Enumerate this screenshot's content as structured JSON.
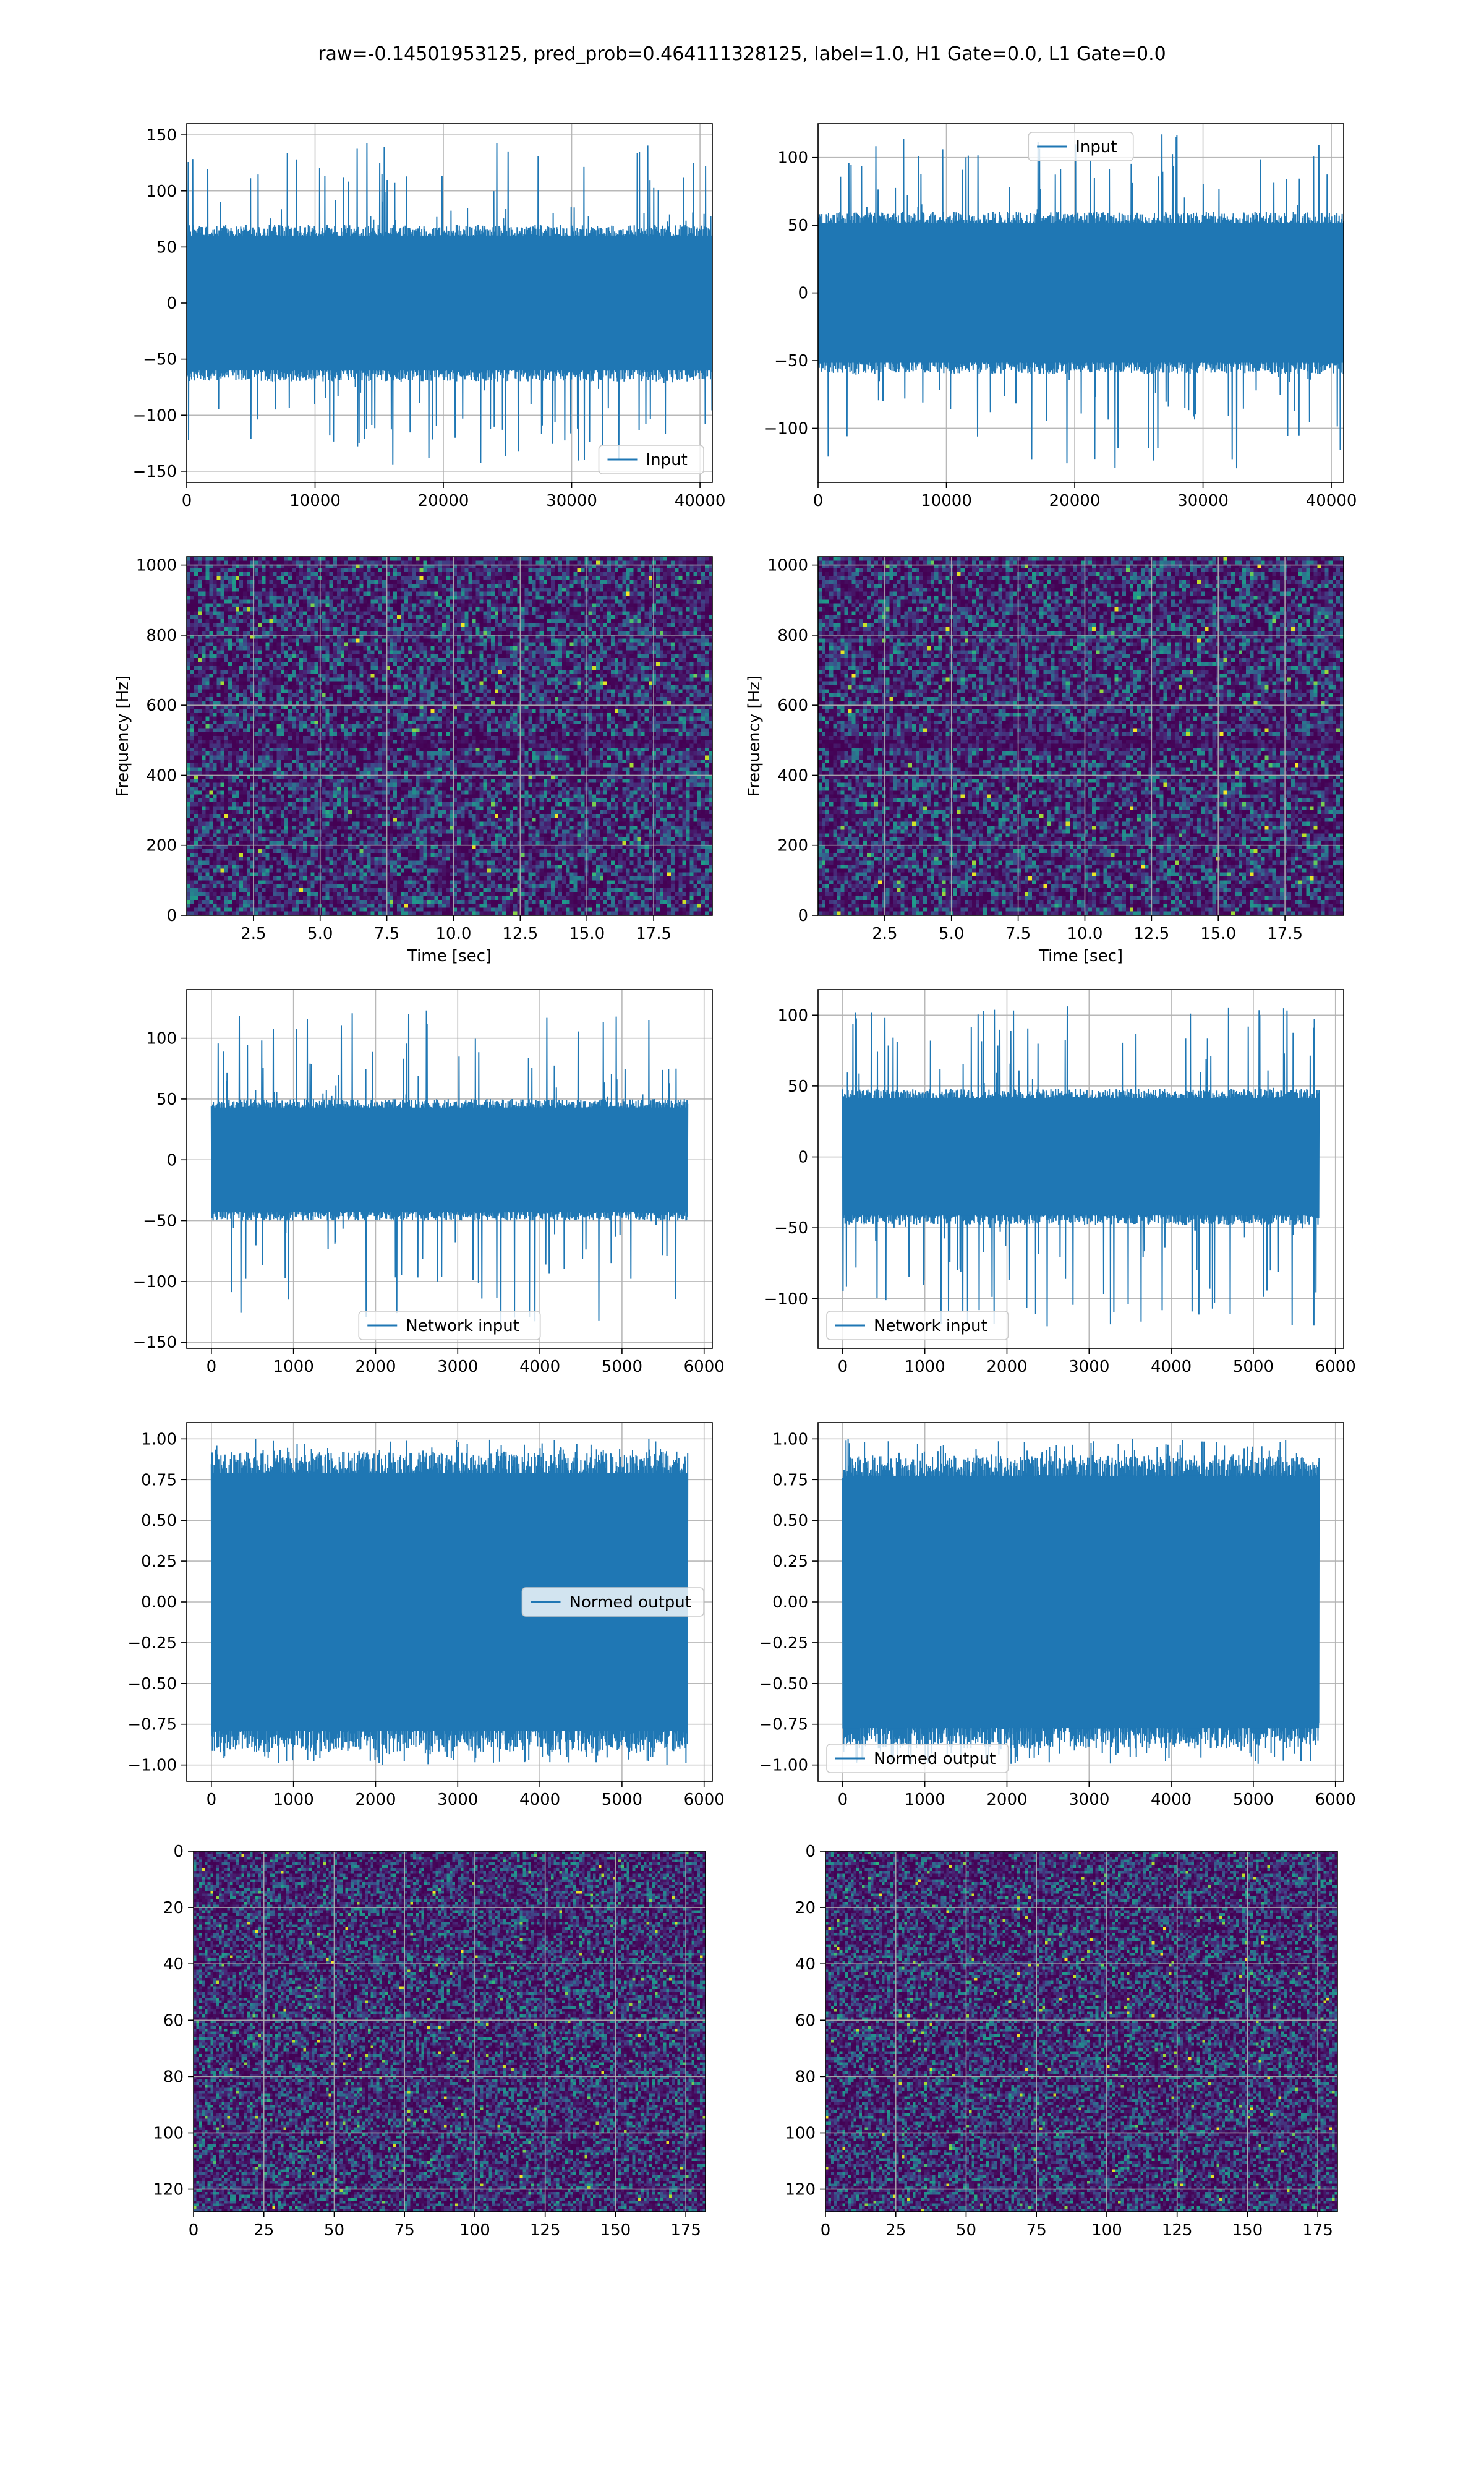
{
  "suptitle": "raw=-0.14501953125, pred_prob=0.464111328125, label=1.0, H1 Gate=0.0, L1 Gate=0.0",
  "colors": {
    "line": "#1f77b4",
    "grid": "#b0b0b0",
    "viridis": [
      "#440154",
      "#482878",
      "#3e4989",
      "#31688e",
      "#26828e",
      "#1f9e89",
      "#35b779",
      "#6ece58",
      "#b5de2b",
      "#fde725"
    ]
  },
  "chart_data": [
    {
      "id": "h1-input",
      "type": "line",
      "panel": "row1-left",
      "legend": {
        "label": "Input",
        "placement": "lower-right"
      },
      "xlim": [
        0,
        40960
      ],
      "ylim": [
        -160,
        160
      ],
      "xticks": [
        0,
        10000,
        20000,
        30000,
        40000
      ],
      "yticks": [
        -150,
        -100,
        -50,
        0,
        50,
        100,
        150
      ],
      "signal": {
        "x_start": 0,
        "x_end": 40960,
        "band": 70,
        "peak_max": 145,
        "peak_min": -145
      }
    },
    {
      "id": "l1-input",
      "type": "line",
      "panel": "row1-right",
      "legend": {
        "label": "Input",
        "placement": "upper-center"
      },
      "xlim": [
        0,
        40960
      ],
      "ylim": [
        -140,
        125
      ],
      "xticks": [
        0,
        10000,
        20000,
        30000,
        40000
      ],
      "yticks": [
        -100,
        -50,
        0,
        50,
        100
      ],
      "signal": {
        "x_start": 0,
        "x_end": 40960,
        "band": 60,
        "peak_max": 118,
        "peak_min": -130
      }
    },
    {
      "id": "h1-spectrogram",
      "type": "heatmap",
      "panel": "row2-left",
      "xlabel": "Time [sec]",
      "ylabel": "Frequency [Hz]",
      "xlim": [
        0,
        19.7
      ],
      "ylim": [
        0,
        1024
      ],
      "xticks": [
        2.5,
        5.0,
        7.5,
        10.0,
        12.5,
        15.0,
        17.5
      ],
      "yticks": [
        0,
        200,
        400,
        600,
        800,
        1000
      ],
      "grid_cells": {
        "cols": 140,
        "rows": 92
      }
    },
    {
      "id": "l1-spectrogram",
      "type": "heatmap",
      "panel": "row2-right",
      "xlabel": "Time [sec]",
      "ylabel": "Frequency [Hz]",
      "xlim": [
        0,
        19.7
      ],
      "ylim": [
        0,
        1024
      ],
      "xticks": [
        2.5,
        5.0,
        7.5,
        10.0,
        12.5,
        15.0,
        17.5
      ],
      "yticks": [
        0,
        200,
        400,
        600,
        800,
        1000
      ],
      "grid_cells": {
        "cols": 140,
        "rows": 92
      }
    },
    {
      "id": "h1-network-input",
      "type": "line",
      "panel": "row3-left",
      "legend": {
        "label": "Network input",
        "placement": "lower-center"
      },
      "xlim": [
        -300,
        6100
      ],
      "ylim": [
        -155,
        140
      ],
      "xticks": [
        0,
        1000,
        2000,
        3000,
        4000,
        5000,
        6000
      ],
      "yticks": [
        -150,
        -100,
        -50,
        0,
        50,
        100
      ],
      "signal": {
        "x_start": 0,
        "x_end": 5800,
        "band": 50,
        "peak_max": 125,
        "peak_min": -140
      }
    },
    {
      "id": "l1-network-input",
      "type": "line",
      "panel": "row3-right",
      "legend": {
        "label": "Network input",
        "placement": "lower-left"
      },
      "xlim": [
        -300,
        6100
      ],
      "ylim": [
        -135,
        118
      ],
      "xticks": [
        0,
        1000,
        2000,
        3000,
        4000,
        5000,
        6000
      ],
      "yticks": [
        -100,
        -50,
        0,
        50,
        100
      ],
      "signal": {
        "x_start": 0,
        "x_end": 5800,
        "band": 48,
        "peak_max": 107,
        "peak_min": -122
      }
    },
    {
      "id": "h1-normed-output",
      "type": "line",
      "panel": "row4-left",
      "legend": {
        "label": "Normed output",
        "placement": "center-right"
      },
      "xlim": [
        -300,
        6100
      ],
      "ylim": [
        -1.1,
        1.1
      ],
      "xticks": [
        0,
        1000,
        2000,
        3000,
        4000,
        5000,
        6000
      ],
      "yticks": [
        -1.0,
        -0.75,
        -0.5,
        -0.25,
        0.0,
        0.25,
        0.5,
        0.75,
        1.0
      ],
      "signal": {
        "x_start": 0,
        "x_end": 5800,
        "band": 0.92,
        "peak_max": 1.0,
        "peak_min": -1.0
      }
    },
    {
      "id": "l1-normed-output",
      "type": "line",
      "panel": "row4-right",
      "legend": {
        "label": "Normed output",
        "placement": "lower-left"
      },
      "xlim": [
        -300,
        6100
      ],
      "ylim": [
        -1.1,
        1.1
      ],
      "xticks": [
        0,
        1000,
        2000,
        3000,
        4000,
        5000,
        6000
      ],
      "yticks": [
        -1.0,
        -0.75,
        -0.5,
        -0.25,
        0.0,
        0.25,
        0.5,
        0.75,
        1.0
      ],
      "signal": {
        "x_start": 0,
        "x_end": 5800,
        "band": 0.9,
        "peak_max": 1.0,
        "peak_min": -1.0
      }
    },
    {
      "id": "h1-image",
      "type": "heatmap",
      "panel": "row5-left",
      "xlim": [
        0,
        182
      ],
      "ylim": [
        128,
        0
      ],
      "xticks": [
        0,
        25,
        50,
        75,
        100,
        125,
        150,
        175
      ],
      "yticks": [
        0,
        20,
        40,
        60,
        80,
        100,
        120
      ],
      "grid_cells": {
        "cols": 182,
        "rows": 128
      }
    },
    {
      "id": "l1-image",
      "type": "heatmap",
      "panel": "row5-right",
      "xlim": [
        0,
        182
      ],
      "ylim": [
        128,
        0
      ],
      "xticks": [
        0,
        25,
        50,
        75,
        100,
        125,
        150,
        175
      ],
      "yticks": [
        0,
        20,
        40,
        60,
        80,
        100,
        120
      ],
      "grid_cells": {
        "cols": 182,
        "rows": 128
      }
    }
  ]
}
